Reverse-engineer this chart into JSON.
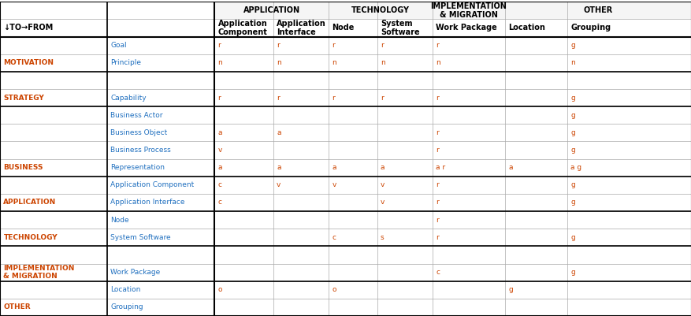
{
  "title": "",
  "figsize": [
    8.78,
    4.01
  ],
  "dpi": 100,
  "col_headers_row1": [
    "",
    "",
    "APPLICATION",
    "",
    "TECHNOLOGY",
    "",
    "IMPLEMENTATION\n& MIGRATION",
    "OTHER",
    ""
  ],
  "col_headers_row2": [
    "",
    "↓TO→FROM",
    "Application\nComponent",
    "Application\nInterface",
    "Node",
    "System\nSoftware",
    "Work Package",
    "Location",
    "Grouping"
  ],
  "row_groups": [
    {
      "group": "MOTIVATION",
      "rows": [
        {
          "label": "Goal",
          "cells": [
            "r",
            "r",
            "r",
            "r",
            "r",
            "",
            "g"
          ]
        },
        {
          "label": "Principle",
          "cells": [
            "n",
            "n",
            "n",
            "n",
            "n",
            "",
            "n"
          ]
        }
      ]
    },
    {
      "group": "STRATEGY",
      "rows": [
        {
          "label": "",
          "cells": [
            "",
            "",
            "",
            "",
            "",
            "",
            ""
          ]
        },
        {
          "label": "Capability",
          "cells": [
            "r",
            "r",
            "r",
            "r",
            "r",
            "",
            "g"
          ]
        }
      ]
    },
    {
      "group": "BUSINESS",
      "rows": [
        {
          "label": "Business Actor",
          "cells": [
            "",
            "",
            "",
            "",
            "",
            "",
            "g"
          ]
        },
        {
          "label": "Business Object",
          "cells": [
            "a",
            "a",
            "",
            "",
            "r",
            "",
            "g"
          ]
        },
        {
          "label": "Business Process",
          "cells": [
            "v",
            "",
            "",
            "",
            "r",
            "",
            "g"
          ]
        },
        {
          "label": "Representation",
          "cells": [
            "a",
            "a",
            "a",
            "a",
            "a r",
            "a",
            "a g"
          ]
        }
      ]
    },
    {
      "group": "APPLICATION",
      "rows": [
        {
          "label": "Application Component",
          "cells": [
            "c",
            "v",
            "v",
            "v",
            "r",
            "",
            "g"
          ]
        },
        {
          "label": "Application Interface",
          "cells": [
            "c",
            "",
            "",
            "v",
            "r",
            "",
            "g"
          ]
        }
      ]
    },
    {
      "group": "TECHNOLOGY",
      "rows": [
        {
          "label": "Node",
          "cells": [
            "",
            "",
            "",
            "",
            "r",
            "",
            ""
          ]
        },
        {
          "label": "System Software",
          "cells": [
            "",
            "",
            "c",
            "s",
            "r",
            "",
            "g"
          ]
        }
      ]
    },
    {
      "group": "IMPLEMENTATION\n& MIGRATION",
      "rows": [
        {
          "label": "",
          "cells": [
            "",
            "",
            "",
            "",
            "",
            "",
            ""
          ]
        },
        {
          "label": "Work Package",
          "cells": [
            "",
            "",
            "",
            "",
            "c",
            "",
            "g"
          ]
        }
      ]
    },
    {
      "group": "OTHER",
      "rows": [
        {
          "label": "Location",
          "cells": [
            "o",
            "",
            "o",
            "",
            "",
            "g",
            ""
          ]
        },
        {
          "label": "Grouping",
          "cells": [
            "",
            "",
            "",
            "",
            "",
            "",
            ""
          ]
        }
      ]
    }
  ],
  "colors": {
    "header_bg": "#ffffff",
    "group_label_color": "#cc4400",
    "row_label_color": "#1f6fbf",
    "cell_text_color": "#cc4400",
    "border_color": "#aaaaaa",
    "thick_border_color": "#000000",
    "header_section_bg": "#f0f0f0",
    "app_header_bg": "#ffffff",
    "bg_white": "#ffffff"
  }
}
